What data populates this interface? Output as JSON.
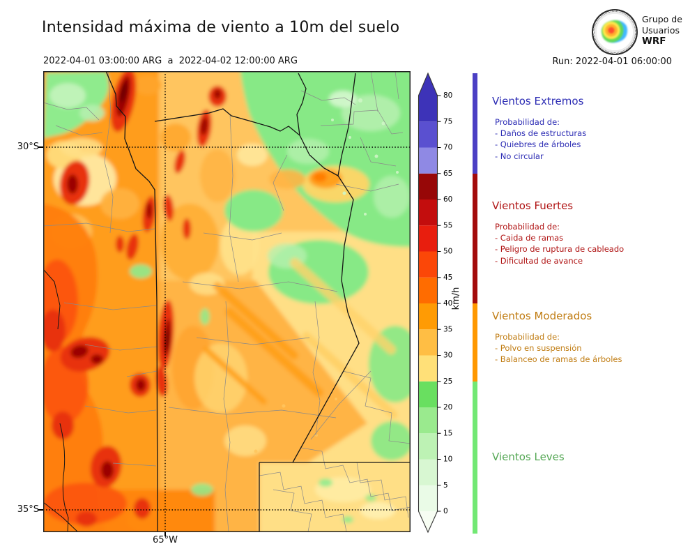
{
  "page": {
    "title": "Intensidad máxima de viento a 10m del suelo",
    "subtitle": "2022-04-01 03:00:00 ARG  a  2022-04-02 12:00:00 ARG",
    "run": "Run: 2022-04-01 06:00:00"
  },
  "logo": {
    "line1": "Grupo de",
    "line2": "Usuarios",
    "line3": "WRF"
  },
  "axes": {
    "lat": [
      "30°S",
      "35°S"
    ],
    "lon": [
      "65°W"
    ]
  },
  "colorbar": {
    "unit": "km/h",
    "tick_values": [
      0,
      5,
      10,
      15,
      20,
      25,
      30,
      35,
      40,
      45,
      50,
      55,
      60,
      65,
      70,
      75,
      80
    ],
    "below_color": "#f7fdf3",
    "above_color": "#3d33b8",
    "segments": [
      {
        "from": 0,
        "to": 5,
        "color": "#eafbe7"
      },
      {
        "from": 5,
        "to": 10,
        "color": "#d8f7d2"
      },
      {
        "from": 10,
        "to": 15,
        "color": "#bdf2b4"
      },
      {
        "from": 15,
        "to": 20,
        "color": "#9aea8e"
      },
      {
        "from": 20,
        "to": 25,
        "color": "#69df60"
      },
      {
        "from": 25,
        "to": 30,
        "color": "#ffe078"
      },
      {
        "from": 30,
        "to": 35,
        "color": "#ffbe44"
      },
      {
        "from": 35,
        "to": 40,
        "color": "#ff9b04"
      },
      {
        "from": 40,
        "to": 45,
        "color": "#ff6c00"
      },
      {
        "from": 45,
        "to": 50,
        "color": "#fb4708"
      },
      {
        "from": 50,
        "to": 55,
        "color": "#e81e0e"
      },
      {
        "from": 55,
        "to": 60,
        "color": "#c30d0d"
      },
      {
        "from": 60,
        "to": 65,
        "color": "#970707"
      },
      {
        "from": 65,
        "to": 70,
        "color": "#8f89e4"
      },
      {
        "from": 70,
        "to": 75,
        "color": "#5a50d0"
      },
      {
        "from": 75,
        "to": 80,
        "color": "#3d33b8"
      }
    ]
  },
  "legend": {
    "sections": [
      {
        "title": "Vientos Extremos",
        "text_color": "#2c2cb4",
        "strip_color": "#4b3fc4",
        "range": [
          65,
          null
        ],
        "intro": "Probabilidad de:",
        "items": [
          "- Daños de estructuras",
          "- Quiebres de árboles",
          "- No circular"
        ]
      },
      {
        "title": "Vientos Fuertes",
        "text_color": "#b01414",
        "strip_color": "#a30b0b",
        "range": [
          40,
          65
        ],
        "intro": "Probabilidad de:",
        "items": [
          "- Caida de ramas",
          "- Peligro de ruptura de cableado",
          "- Dificultad de avance"
        ]
      },
      {
        "title": "Vientos Moderados",
        "text_color": "#c07c12",
        "strip_color": "#ff9800",
        "range": [
          25,
          40
        ],
        "intro": "Probabilidad de:",
        "items": [
          "- Polvo en suspensión",
          "- Balanceo de ramas de árboles"
        ]
      },
      {
        "title": "Vientos Leves",
        "text_color": "#54a754",
        "strip_color": "#72e874",
        "range": [
          0,
          25
        ],
        "intro": null,
        "items": []
      }
    ]
  }
}
